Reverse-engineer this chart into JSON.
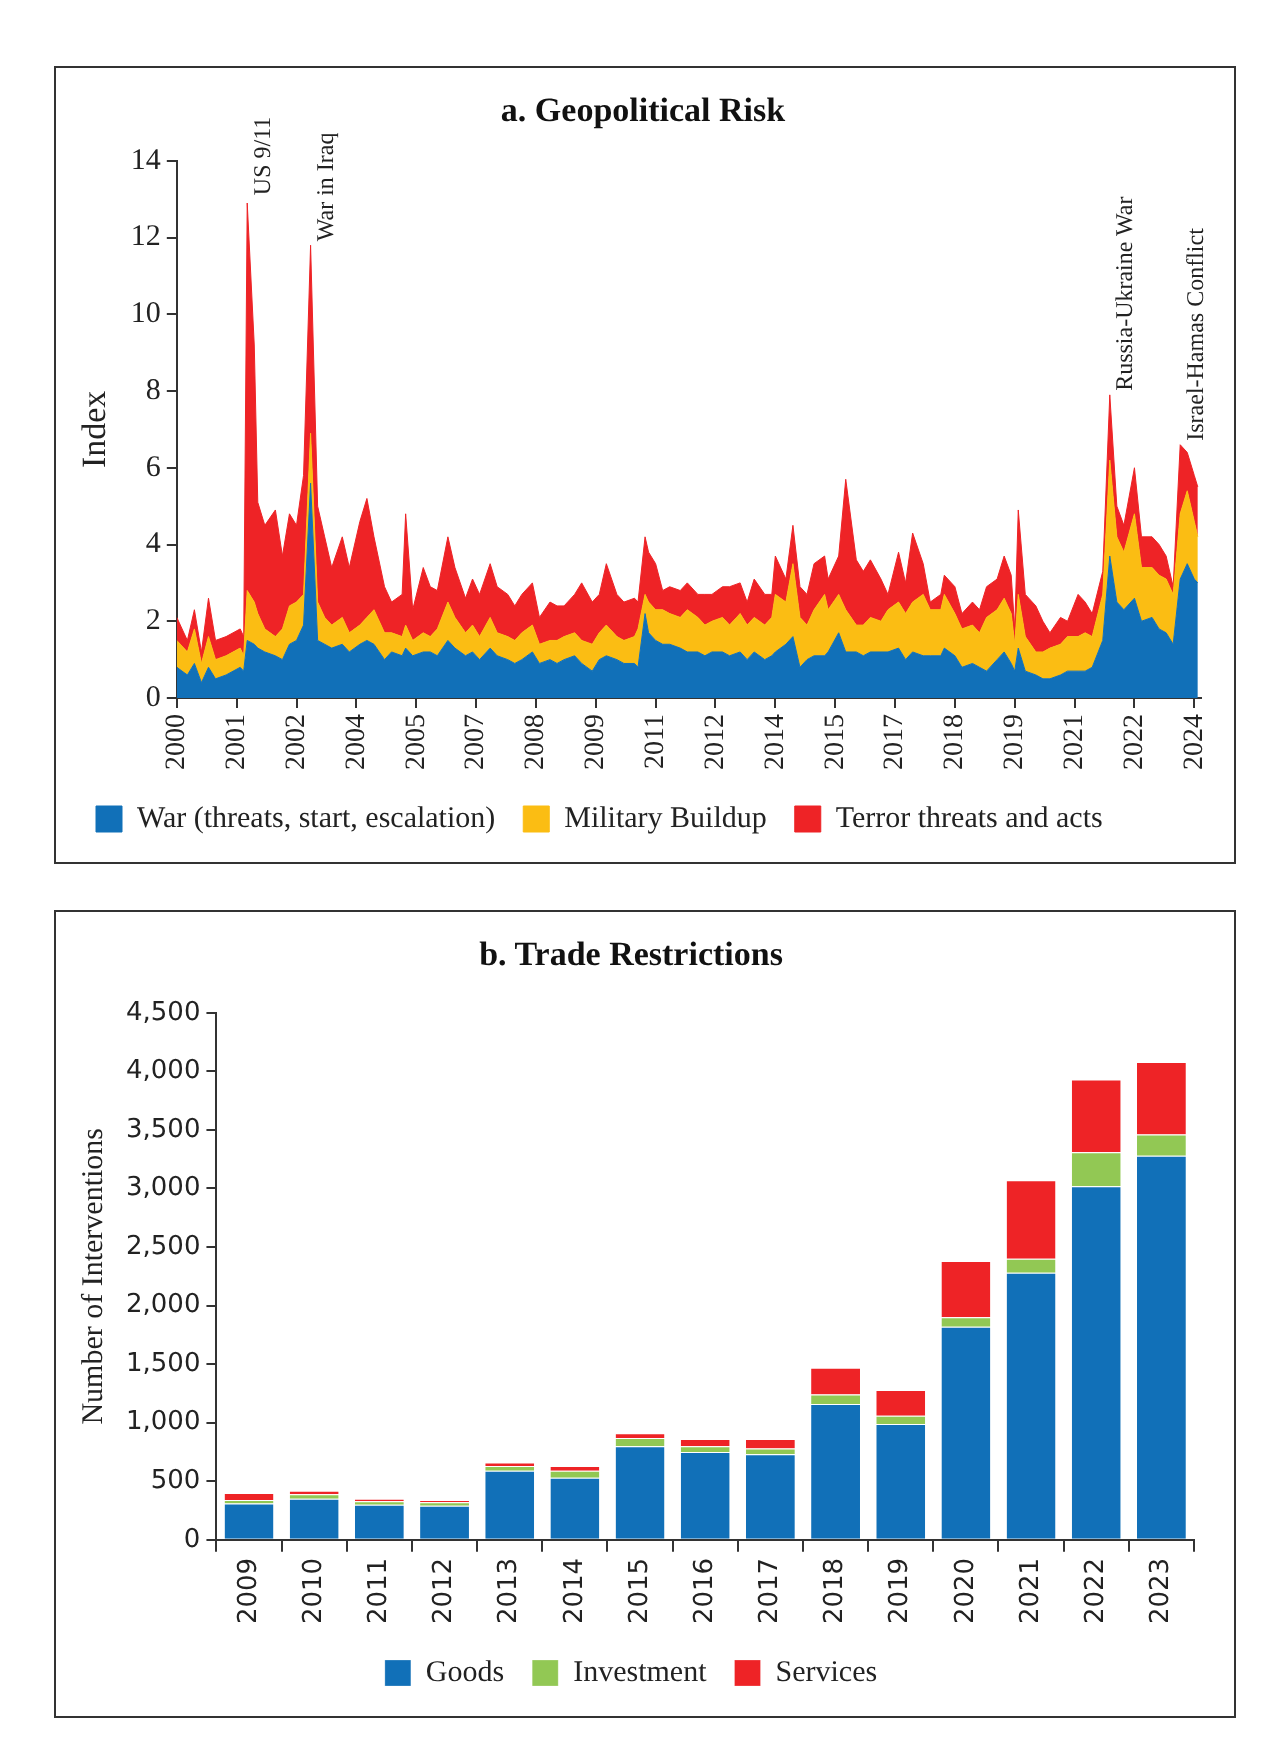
{
  "chart_data": [
    {
      "type": "area",
      "title": "a. Geopolitical Risk",
      "ylabel": "Index",
      "stacked": true,
      "grid": false,
      "legend": "bottom left",
      "x": [
        "2000-01",
        "2000-04",
        "2000-06",
        "2000-08",
        "2000-10",
        "2000-12",
        "2001-03",
        "2001-07",
        "2001-08",
        "2001-09",
        "2001-11",
        "2001-12",
        "2002-02",
        "2002-05",
        "2002-07",
        "2002-09",
        "2002-11",
        "2003-01",
        "2003-03",
        "2003-05",
        "2003-07",
        "2003-09",
        "2003-12",
        "2004-02",
        "2004-05",
        "2004-07",
        "2004-09",
        "2004-12",
        "2005-02",
        "2005-05",
        "2005-06",
        "2005-08",
        "2005-11",
        "2006-01",
        "2006-03",
        "2006-06",
        "2006-08",
        "2006-11",
        "2007-01",
        "2007-03",
        "2007-06",
        "2007-08",
        "2007-11",
        "2008-01",
        "2008-03",
        "2008-06",
        "2008-08",
        "2008-11",
        "2009-01",
        "2009-03",
        "2009-06",
        "2009-08",
        "2009-11",
        "2010-01",
        "2010-03",
        "2010-06",
        "2010-08",
        "2010-11",
        "2010-12",
        "2011-02",
        "2011-03",
        "2011-05",
        "2011-07",
        "2011-09",
        "2011-12",
        "2012-02",
        "2012-05",
        "2012-07",
        "2012-09",
        "2012-12",
        "2013-02",
        "2013-05",
        "2013-07",
        "2013-09",
        "2013-12",
        "2014-02",
        "2014-03",
        "2014-06",
        "2014-08",
        "2014-10",
        "2014-12",
        "2015-02",
        "2015-05",
        "2015-06",
        "2015-09",
        "2015-11",
        "2016-02",
        "2016-04",
        "2016-06",
        "2016-09",
        "2016-11",
        "2017-02",
        "2017-04",
        "2017-06",
        "2017-09",
        "2017-11",
        "2018-02",
        "2018-03",
        "2018-06",
        "2018-08",
        "2018-11",
        "2019-01",
        "2019-03",
        "2019-06",
        "2019-08",
        "2019-10",
        "2019-11",
        "2019-12",
        "2020-02",
        "2020-05",
        "2020-07",
        "2020-09",
        "2020-12",
        "2021-02",
        "2021-05",
        "2021-07",
        "2021-09",
        "2021-12",
        "2022-02",
        "2022-04",
        "2022-06",
        "2022-09",
        "2022-11",
        "2023-02",
        "2023-04",
        "2023-06",
        "2023-08",
        "2023-10",
        "2023-12",
        "2024-02",
        "2024-03"
      ],
      "series": [
        {
          "name": "War (threats, start, escalation)",
          "color": "#1170b8",
          "values": [
            0.8,
            0.6,
            0.9,
            0.4,
            0.8,
            0.5,
            0.6,
            0.8,
            0.7,
            1.5,
            1.4,
            1.3,
            1.2,
            1.1,
            1.0,
            1.4,
            1.5,
            1.9,
            5.6,
            1.5,
            1.4,
            1.3,
            1.4,
            1.2,
            1.4,
            1.5,
            1.4,
            1.0,
            1.2,
            1.1,
            1.3,
            1.1,
            1.2,
            1.2,
            1.1,
            1.5,
            1.3,
            1.1,
            1.2,
            1.0,
            1.3,
            1.1,
            1.0,
            0.9,
            1.0,
            1.2,
            0.9,
            1.0,
            0.9,
            1.0,
            1.1,
            0.9,
            0.7,
            1.0,
            1.1,
            1.0,
            0.9,
            0.9,
            0.8,
            2.2,
            1.7,
            1.5,
            1.4,
            1.4,
            1.3,
            1.2,
            1.2,
            1.1,
            1.2,
            1.2,
            1.1,
            1.2,
            1.0,
            1.2,
            1.0,
            1.1,
            1.2,
            1.4,
            1.6,
            0.8,
            1.0,
            1.1,
            1.1,
            1.2,
            1.7,
            1.2,
            1.2,
            1.1,
            1.2,
            1.2,
            1.2,
            1.3,
            1.0,
            1.2,
            1.1,
            1.1,
            1.1,
            1.3,
            1.1,
            0.8,
            0.9,
            0.8,
            0.7,
            1.0,
            1.2,
            0.9,
            0.7,
            1.3,
            0.7,
            0.6,
            0.5,
            0.5,
            0.6,
            0.7,
            0.7,
            0.7,
            0.8,
            1.5,
            3.7,
            2.5,
            2.3,
            2.6,
            2.0,
            2.1,
            1.8,
            1.7,
            1.4,
            3.1,
            3.5,
            3.1,
            3.0
          ]
        },
        {
          "name": "Military Buildup",
          "color": "#fbbd13",
          "values": [
            0.7,
            0.6,
            0.9,
            0.5,
            0.8,
            0.5,
            0.5,
            0.5,
            0.4,
            1.3,
            1.1,
            0.9,
            0.6,
            0.5,
            0.8,
            1.0,
            1.0,
            0.8,
            1.3,
            1.0,
            0.7,
            0.6,
            0.7,
            0.5,
            0.5,
            0.6,
            0.9,
            0.7,
            0.5,
            0.5,
            0.6,
            0.4,
            0.5,
            0.4,
            0.7,
            1.0,
            0.8,
            0.6,
            0.7,
            0.6,
            0.8,
            0.6,
            0.6,
            0.6,
            0.7,
            0.7,
            0.5,
            0.5,
            0.6,
            0.6,
            0.6,
            0.6,
            0.7,
            0.7,
            0.8,
            0.6,
            0.6,
            0.7,
            1.0,
            0.5,
            0.8,
            0.8,
            0.9,
            0.8,
            0.8,
            1.1,
            0.9,
            0.8,
            0.8,
            0.9,
            0.8,
            1.0,
            0.9,
            0.9,
            0.9,
            1.0,
            1.5,
            1.1,
            1.9,
            1.3,
            0.9,
            1.2,
            1.6,
            1.1,
            1.0,
            1.1,
            0.7,
            0.8,
            0.9,
            0.8,
            1.1,
            1.2,
            1.2,
            1.3,
            1.6,
            1.2,
            1.2,
            1.4,
            1.1,
            1.0,
            1.0,
            0.9,
            1.4,
            1.3,
            1.4,
            1.3,
            0.7,
            1.4,
            0.9,
            0.6,
            0.7,
            0.8,
            0.8,
            0.9,
            0.9,
            1.0,
            0.8,
            1.2,
            2.5,
            1.7,
            1.5,
            2.2,
            1.4,
            1.3,
            1.4,
            1.4,
            1.3,
            1.7,
            1.9,
            1.5,
            1.2
          ]
        },
        {
          "name": "Terror threats and acts",
          "color": "#ee2326",
          "values": [
            0.6,
            0.3,
            0.5,
            0.3,
            1.0,
            0.5,
            0.5,
            0.5,
            0.5,
            10.1,
            6.7,
            2.9,
            2.7,
            3.3,
            1.9,
            2.4,
            2.0,
            3.1,
            4.9,
            2.5,
            2.1,
            1.5,
            2.1,
            1.7,
            2.7,
            3.1,
            1.9,
            1.2,
            0.8,
            1.1,
            2.9,
            0.8,
            1.7,
            1.3,
            1.0,
            1.7,
            1.3,
            0.9,
            1.2,
            1.1,
            1.4,
            1.2,
            1.1,
            0.9,
            1.0,
            1.1,
            0.7,
            1.0,
            0.9,
            0.8,
            1.0,
            1.5,
            1.1,
            1.0,
            1.6,
            1.1,
            1.0,
            1.0,
            0.7,
            1.5,
            1.3,
            1.2,
            0.5,
            0.7,
            0.7,
            0.7,
            0.6,
            0.8,
            0.7,
            0.8,
            1.0,
            0.8,
            0.6,
            1.0,
            0.8,
            0.6,
            1.0,
            0.6,
            1.0,
            0.8,
            0.8,
            1.2,
            1.0,
            0.8,
            1.0,
            3.4,
            1.7,
            1.4,
            1.5,
            1.1,
            0.4,
            1.3,
            0.8,
            1.8,
            0.8,
            0.2,
            0.4,
            0.5,
            0.7,
            0.4,
            0.6,
            0.6,
            0.8,
            0.8,
            1.1,
            1.0,
            0.4,
            2.2,
            1.1,
            1.2,
            0.8,
            0.4,
            0.7,
            0.4,
            1.1,
            0.8,
            0.6,
            0.6,
            1.7,
            0.8,
            0.7,
            1.2,
            0.8,
            0.8,
            0.8,
            0.6,
            0.2,
            1.8,
            1.0,
            1.2,
            1.3
          ]
        }
      ],
      "xlim": [
        "2000-01",
        "2024-04"
      ],
      "xticks": [
        {
          "value": "2000-01",
          "label": "2000"
        },
        {
          "value": "2001-06",
          "label": "2001"
        },
        {
          "value": "2002-11",
          "label": "2002"
        },
        {
          "value": "2004-04",
          "label": "2004"
        },
        {
          "value": "2005-09",
          "label": "2005"
        },
        {
          "value": "2007-02",
          "label": "2007"
        },
        {
          "value": "2008-07",
          "label": "2008"
        },
        {
          "value": "2009-12",
          "label": "2009"
        },
        {
          "value": "2011-05",
          "label": "2011"
        },
        {
          "value": "2012-10",
          "label": "2012"
        },
        {
          "value": "2014-03",
          "label": "2014"
        },
        {
          "value": "2015-08",
          "label": "2015"
        },
        {
          "value": "2017-01",
          "label": "2017"
        },
        {
          "value": "2018-06",
          "label": "2018"
        },
        {
          "value": "2019-11",
          "label": "2019"
        },
        {
          "value": "2021-04",
          "label": "2021"
        },
        {
          "value": "2022-09",
          "label": "2022"
        },
        {
          "value": "2024-02",
          "label": "2024"
        }
      ],
      "ylim": [
        0,
        14
      ],
      "yticks": [
        0,
        2,
        4,
        6,
        8,
        10,
        12,
        14
      ],
      "annotations": [
        {
          "text": "US 9/11",
          "x": "2001-09",
          "y": 13
        },
        {
          "text": "War in Iraq",
          "x": "2003-03",
          "y": 11.8
        },
        {
          "text": "Russia-Ukraine War",
          "x": "2022-02",
          "y": 7.9
        },
        {
          "text": "Israel-Hamas Conflict",
          "x": "2023-10",
          "y": 6.6
        }
      ]
    },
    {
      "type": "bar",
      "title": "b. Trade Restrictions",
      "ylabel": "Number of Interventions",
      "stacked": true,
      "grid": false,
      "legend": "bottom",
      "categories": [
        "2009",
        "2010",
        "2011",
        "2012",
        "2013",
        "2014",
        "2015",
        "2016",
        "2017",
        "2018",
        "2019",
        "2020",
        "2021",
        "2022",
        "2023"
      ],
      "series": [
        {
          "name": "Goods",
          "color": "#1170b8",
          "values": [
            310,
            350,
            300,
            290,
            590,
            530,
            800,
            750,
            730,
            1160,
            990,
            1820,
            2280,
            3020,
            3280
          ]
        },
        {
          "name": "Investment",
          "color": "#92c854",
          "values": [
            30,
            40,
            30,
            30,
            40,
            60,
            70,
            50,
            50,
            80,
            70,
            80,
            120,
            290,
            180
          ]
        },
        {
          "name": "Services",
          "color": "#ee2326",
          "values": [
            60,
            30,
            20,
            20,
            30,
            40,
            40,
            60,
            80,
            230,
            220,
            480,
            670,
            620,
            620
          ]
        }
      ],
      "ylim": [
        0,
        4500
      ],
      "yticks": [
        0,
        500,
        {
          "value": 1000,
          "label": "1,000"
        },
        {
          "value": 1500,
          "label": "1,500"
        },
        {
          "value": 2000,
          "label": "2,000"
        },
        {
          "value": 2500,
          "label": "2,500"
        },
        {
          "value": 3000,
          "label": "3,000"
        },
        {
          "value": 3500,
          "label": "3,500"
        },
        {
          "value": 4000,
          "label": "4,000"
        },
        {
          "value": 4500,
          "label": "4,500"
        }
      ]
    }
  ]
}
